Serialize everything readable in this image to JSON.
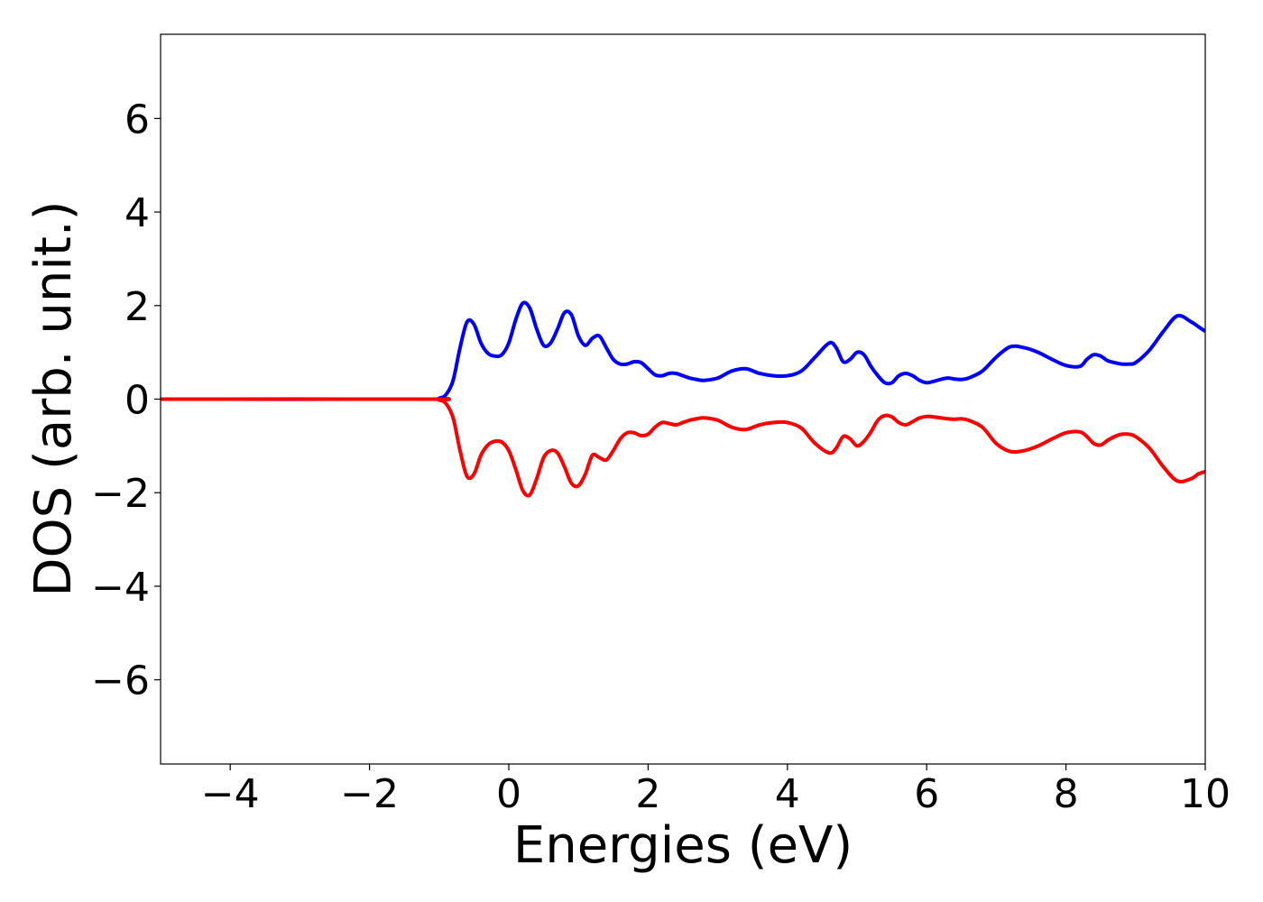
{
  "chart_data": {
    "type": "line",
    "title": "",
    "xlabel": "Energies (eV)",
    "ylabel": "DOS (arb. unit.)",
    "xlim": [
      -5,
      10
    ],
    "ylim": [
      -7.8,
      7.8
    ],
    "grid": false,
    "legend": "none",
    "xticks": [
      -4,
      -2,
      0,
      2,
      4,
      6,
      8,
      10
    ],
    "yticks": [
      -6,
      -4,
      -2,
      0,
      2,
      4,
      6
    ],
    "xtick_labels": [
      "−4",
      "−2",
      "0",
      "2",
      "4",
      "6",
      "8",
      "10"
    ],
    "ytick_labels": [
      "−6",
      "−4",
      "−2",
      "0",
      "2",
      "4",
      "6"
    ],
    "series": [
      {
        "color": "#0000ff",
        "x": [
          -5,
          -1.2,
          -1.0,
          -0.9,
          -0.8,
          -0.7,
          -0.6,
          -0.5,
          -0.4,
          -0.3,
          -0.2,
          -0.1,
          0.0,
          0.1,
          0.2,
          0.3,
          0.4,
          0.5,
          0.6,
          0.7,
          0.8,
          0.9,
          1.0,
          1.1,
          1.2,
          1.3,
          1.4,
          1.5,
          1.6,
          1.7,
          1.8,
          1.9,
          2.0,
          2.1,
          2.2,
          2.3,
          2.4,
          2.5,
          2.6,
          2.7,
          2.8,
          3.0,
          3.2,
          3.4,
          3.6,
          3.8,
          4.0,
          4.2,
          4.4,
          4.6,
          4.7,
          4.8,
          4.9,
          5.0,
          5.1,
          5.2,
          5.3,
          5.4,
          5.5,
          5.6,
          5.7,
          5.8,
          5.9,
          6.0,
          6.1,
          6.2,
          6.3,
          6.4,
          6.5,
          6.6,
          6.8,
          7.0,
          7.2,
          7.4,
          7.6,
          7.8,
          8.0,
          8.2,
          8.3,
          8.4,
          8.5,
          8.6,
          8.7,
          8.8,
          8.9,
          9.0,
          9.2,
          9.4,
          9.6,
          9.8,
          9.9,
          10.0
        ],
        "y": [
          0,
          0,
          0.02,
          0.1,
          0.4,
          1.1,
          1.65,
          1.6,
          1.2,
          0.98,
          0.92,
          0.95,
          1.2,
          1.7,
          2.05,
          1.95,
          1.5,
          1.15,
          1.2,
          1.5,
          1.85,
          1.8,
          1.35,
          1.15,
          1.3,
          1.35,
          1.1,
          0.85,
          0.75,
          0.75,
          0.8,
          0.78,
          0.65,
          0.52,
          0.5,
          0.55,
          0.55,
          0.5,
          0.45,
          0.42,
          0.4,
          0.45,
          0.6,
          0.65,
          0.55,
          0.5,
          0.5,
          0.6,
          0.9,
          1.2,
          1.1,
          0.8,
          0.85,
          1.0,
          0.95,
          0.7,
          0.5,
          0.35,
          0.35,
          0.5,
          0.55,
          0.5,
          0.4,
          0.35,
          0.38,
          0.42,
          0.45,
          0.43,
          0.42,
          0.45,
          0.6,
          0.9,
          1.12,
          1.1,
          1.0,
          0.85,
          0.72,
          0.7,
          0.85,
          0.95,
          0.92,
          0.82,
          0.78,
          0.75,
          0.75,
          0.78,
          1.05,
          1.45,
          1.78,
          1.65,
          1.55,
          1.45
        ]
      },
      {
        "color": "#ff0000",
        "x": [
          -5,
          -1.2,
          -1.0,
          -0.9,
          -0.8,
          -0.7,
          -0.6,
          -0.5,
          -0.4,
          -0.3,
          -0.2,
          -0.1,
          0.0,
          0.1,
          0.2,
          0.3,
          0.4,
          0.5,
          0.6,
          0.7,
          0.8,
          0.9,
          1.0,
          1.1,
          1.2,
          1.3,
          1.4,
          1.5,
          1.6,
          1.7,
          1.8,
          1.9,
          2.0,
          2.1,
          2.2,
          2.3,
          2.4,
          2.5,
          2.6,
          2.7,
          2.8,
          3.0,
          3.2,
          3.4,
          3.6,
          3.8,
          4.0,
          4.2,
          4.4,
          4.6,
          4.7,
          4.8,
          4.9,
          5.0,
          5.1,
          5.2,
          5.3,
          5.4,
          5.5,
          5.6,
          5.7,
          5.8,
          5.9,
          6.0,
          6.1,
          6.2,
          6.3,
          6.4,
          6.5,
          6.6,
          6.8,
          7.0,
          7.2,
          7.4,
          7.6,
          7.8,
          8.0,
          8.2,
          8.3,
          8.4,
          8.5,
          8.6,
          8.7,
          8.8,
          8.9,
          9.0,
          9.2,
          9.4,
          9.6,
          9.8,
          9.9,
          10.0
        ],
        "y": [
          0,
          0,
          -0.02,
          -0.1,
          -0.4,
          -1.1,
          -1.65,
          -1.6,
          -1.2,
          -0.98,
          -0.9,
          -0.92,
          -1.1,
          -1.5,
          -1.95,
          -2.05,
          -1.7,
          -1.25,
          -1.1,
          -1.15,
          -1.45,
          -1.8,
          -1.85,
          -1.6,
          -1.2,
          -1.25,
          -1.3,
          -1.1,
          -0.85,
          -0.72,
          -0.72,
          -0.78,
          -0.75,
          -0.6,
          -0.5,
          -0.52,
          -0.55,
          -0.5,
          -0.45,
          -0.42,
          -0.4,
          -0.45,
          -0.6,
          -0.65,
          -0.55,
          -0.5,
          -0.5,
          -0.62,
          -0.95,
          -1.15,
          -1.05,
          -0.8,
          -0.85,
          -1.0,
          -0.9,
          -0.7,
          -0.45,
          -0.35,
          -0.38,
          -0.5,
          -0.55,
          -0.48,
          -0.4,
          -0.37,
          -0.38,
          -0.4,
          -0.42,
          -0.43,
          -0.42,
          -0.45,
          -0.6,
          -0.95,
          -1.12,
          -1.1,
          -1.0,
          -0.85,
          -0.72,
          -0.7,
          -0.8,
          -0.95,
          -0.98,
          -0.88,
          -0.8,
          -0.75,
          -0.75,
          -0.8,
          -1.05,
          -1.45,
          -1.75,
          -1.7,
          -1.6,
          -1.55
        ]
      }
    ]
  }
}
